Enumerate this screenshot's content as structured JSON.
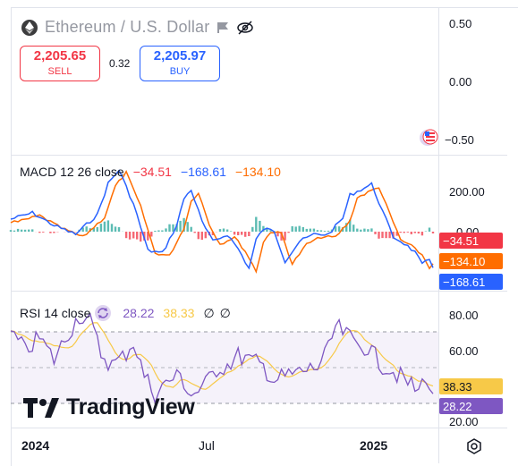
{
  "header": {
    "title": "Ethereum / U.S. Dollar",
    "sell": {
      "price": "2,205.65",
      "label": "SELL"
    },
    "spread": "0.32",
    "buy": {
      "price": "2,205.97",
      "label": "BUY"
    }
  },
  "main_pane": {
    "y_labels": [
      "0.50",
      "0.00",
      "−0.50"
    ]
  },
  "macd": {
    "title": "MACD 12 26 close",
    "val1": "−34.51",
    "val2": "−168.61",
    "val3": "−134.10",
    "y_labels": [
      "200.00",
      "0.00"
    ],
    "badges": [
      {
        "text": "−34.51",
        "color": "#f23645"
      },
      {
        "text": "−134.10",
        "color": "#ff6d00"
      },
      {
        "text": "−168.61",
        "color": "#2962ff"
      }
    ]
  },
  "rsi": {
    "title": "RSI 14 close",
    "val1": "28.22",
    "val2": "38.33",
    "val3": "∅",
    "val4": "∅",
    "y_labels": [
      "80.00",
      "60.00",
      "20.00"
    ],
    "badges": [
      {
        "text": "38.33",
        "color": "#f7c948"
      },
      {
        "text": "28.22",
        "color": "#7e57c2"
      }
    ]
  },
  "x_axis": {
    "labels": [
      "2024",
      "Jul",
      "2025"
    ]
  },
  "logo": {
    "text": "TradingView"
  },
  "icons": {
    "coin": "ethereum-coin-icon",
    "flag": "flag-icon",
    "visibility": "eye-crossed-icon",
    "refresh": "refresh-icon",
    "settings": "settings-icon",
    "news": "us-flag-news-icon"
  },
  "colors": {
    "macd": "#2962ff",
    "signal": "#ff6d00",
    "hist_pos": "#26a69a",
    "hist_neg": "#f23645",
    "rsi": "#7e57c2",
    "rsi_ma": "#f7c948"
  }
}
